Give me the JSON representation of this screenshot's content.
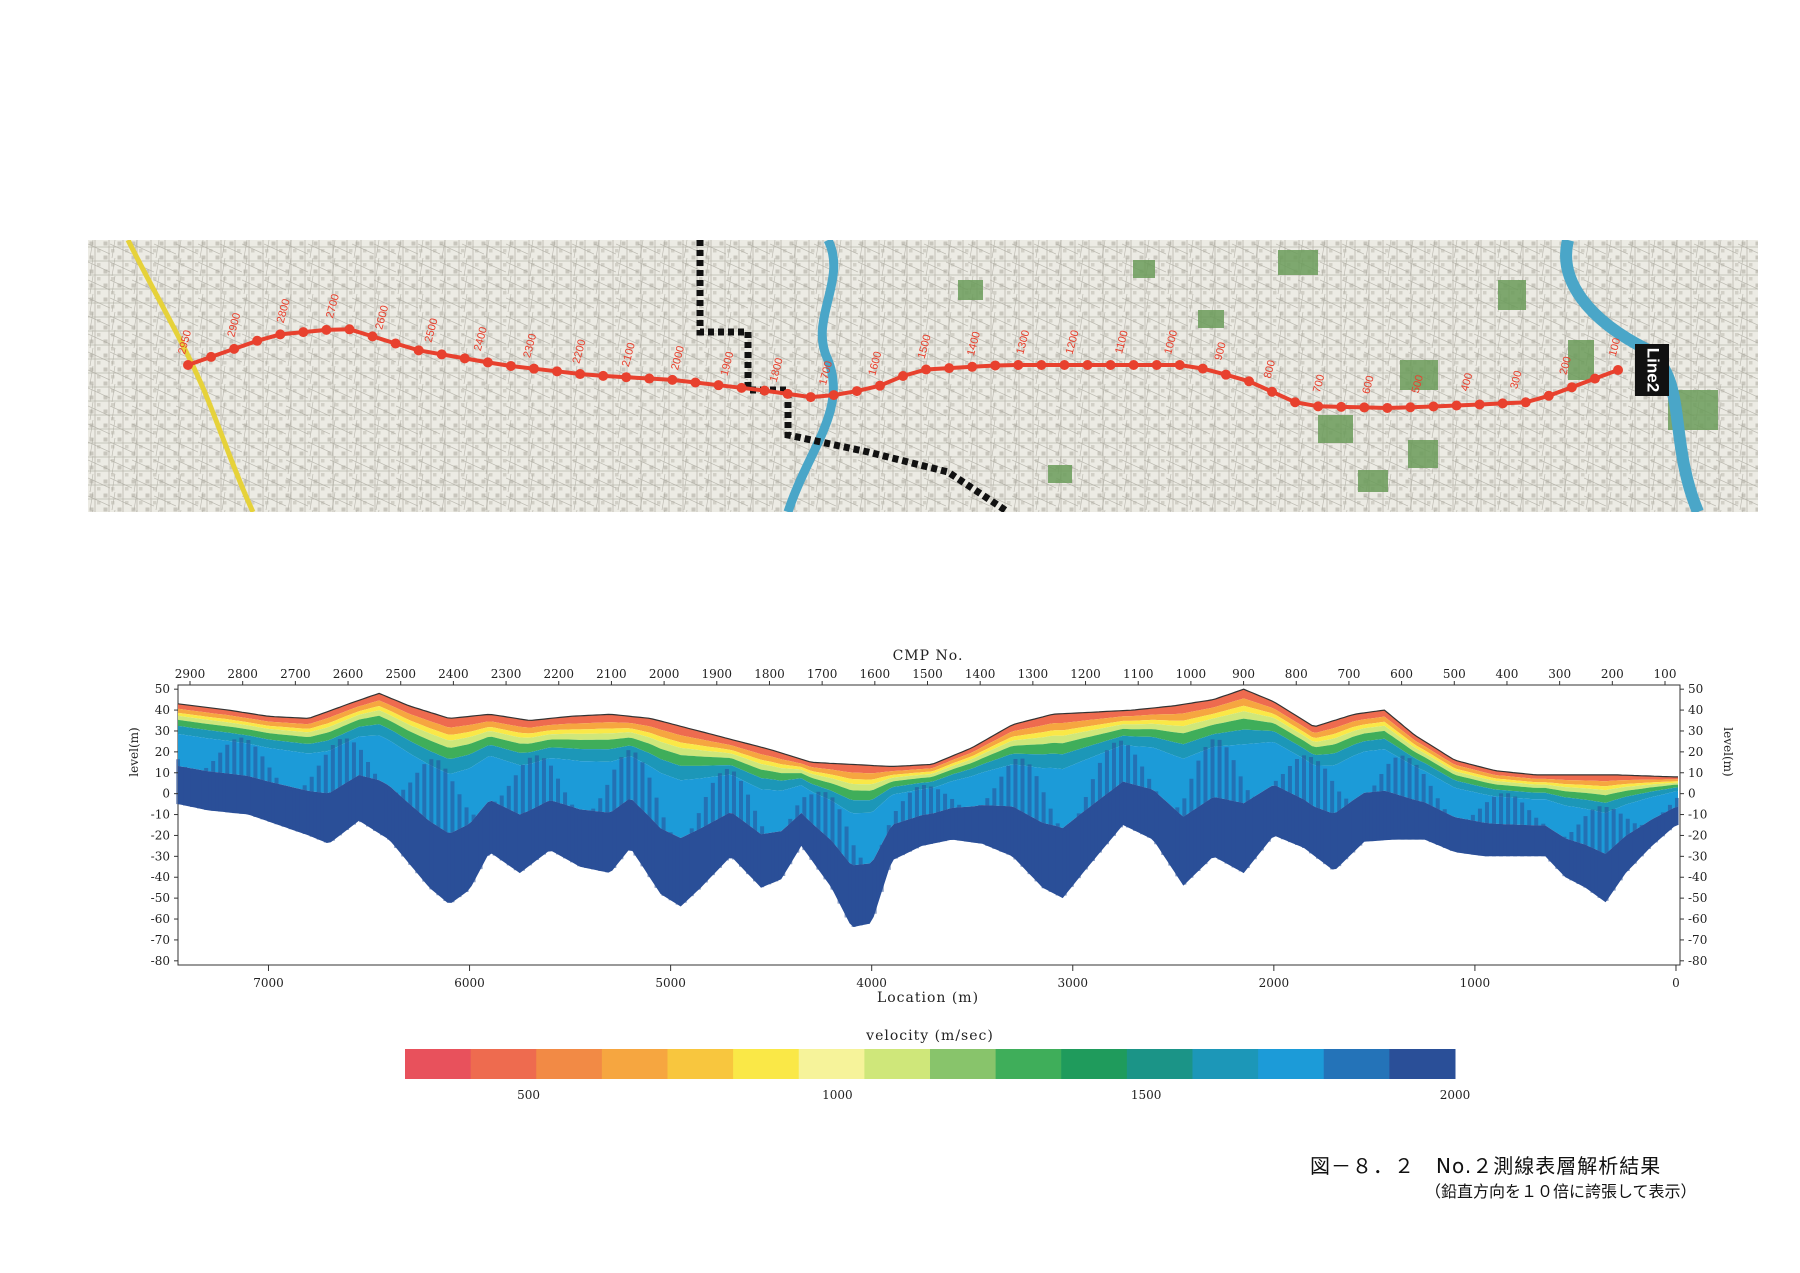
{
  "map": {
    "line_label": "Line2",
    "station_labels": [
      "2950",
      "2900",
      "2800",
      "2700",
      "2600",
      "2500",
      "2400",
      "2300",
      "2200",
      "2100",
      "2000",
      "1900",
      "1800",
      "1700",
      "1600",
      "1500",
      "1400",
      "1300",
      "1200",
      "1100",
      "1000",
      "900",
      "800",
      "700",
      "600",
      "500",
      "400",
      "300",
      "200",
      "100"
    ],
    "colors": {
      "route": "#e8412e",
      "land": "#e9e7df",
      "park": "#6b9c5a",
      "river": "#4aa6c8",
      "highway": "#e6d23a",
      "boundary": "#111111"
    }
  },
  "chart_data": {
    "type": "heatmap",
    "title": "CMP No.",
    "top_axis_ticks": [
      "2900",
      "2800",
      "2700",
      "2600",
      "2500",
      "2400",
      "2300",
      "2200",
      "2100",
      "2000",
      "1900",
      "1800",
      "1700",
      "1600",
      "1500",
      "1400",
      "1300",
      "1200",
      "1100",
      "1000",
      "900",
      "800",
      "700",
      "600",
      "500",
      "400",
      "300",
      "200",
      "100"
    ],
    "xlabel": "Location (m)",
    "x_ticks": [
      7000,
      6000,
      5000,
      4000,
      3000,
      2000,
      1000,
      0
    ],
    "xlim": [
      7450,
      -20
    ],
    "ylabel": "level(m)",
    "ylabel_right": "level(m)",
    "y_ticks": [
      50,
      40,
      30,
      20,
      10,
      0,
      -10,
      -20,
      -30,
      -40,
      -50,
      -60,
      -70,
      -80
    ],
    "ylim": [
      -82,
      52
    ],
    "surface": [
      [
        7450,
        43
      ],
      [
        7200,
        40
      ],
      [
        7000,
        37
      ],
      [
        6800,
        36
      ],
      [
        6600,
        43
      ],
      [
        6450,
        48
      ],
      [
        6300,
        42
      ],
      [
        6100,
        36
      ],
      [
        5900,
        38
      ],
      [
        5700,
        35
      ],
      [
        5500,
        37
      ],
      [
        5300,
        38
      ],
      [
        5100,
        36
      ],
      [
        4900,
        31
      ],
      [
        4700,
        26
      ],
      [
        4500,
        21
      ],
      [
        4300,
        15
      ],
      [
        4100,
        14
      ],
      [
        3900,
        13
      ],
      [
        3700,
        14
      ],
      [
        3500,
        22
      ],
      [
        3300,
        33
      ],
      [
        3100,
        38
      ],
      [
        2900,
        39
      ],
      [
        2700,
        40
      ],
      [
        2500,
        42
      ],
      [
        2300,
        45
      ],
      [
        2150,
        50
      ],
      [
        2000,
        44
      ],
      [
        1800,
        32
      ],
      [
        1600,
        38
      ],
      [
        1450,
        40
      ],
      [
        1300,
        28
      ],
      [
        1100,
        16
      ],
      [
        900,
        11
      ],
      [
        700,
        9
      ],
      [
        500,
        9
      ],
      [
        300,
        9
      ],
      [
        0,
        8
      ]
    ],
    "bottom": [
      [
        7450,
        -5
      ],
      [
        7300,
        -8
      ],
      [
        7100,
        -10
      ],
      [
        6950,
        -15
      ],
      [
        6800,
        -20
      ],
      [
        6700,
        -24
      ],
      [
        6550,
        -13
      ],
      [
        6400,
        -22
      ],
      [
        6200,
        -45
      ],
      [
        6100,
        -53
      ],
      [
        6000,
        -46
      ],
      [
        5900,
        -28
      ],
      [
        5750,
        -38
      ],
      [
        5600,
        -27
      ],
      [
        5450,
        -35
      ],
      [
        5300,
        -38
      ],
      [
        5200,
        -26
      ],
      [
        5050,
        -48
      ],
      [
        4950,
        -54
      ],
      [
        4850,
        -45
      ],
      [
        4700,
        -30
      ],
      [
        4550,
        -45
      ],
      [
        4450,
        -41
      ],
      [
        4350,
        -25
      ],
      [
        4200,
        -45
      ],
      [
        4100,
        -64
      ],
      [
        4000,
        -62
      ],
      [
        3900,
        -32
      ],
      [
        3750,
        -25
      ],
      [
        3600,
        -22
      ],
      [
        3450,
        -24
      ],
      [
        3300,
        -30
      ],
      [
        3150,
        -45
      ],
      [
        3050,
        -50
      ],
      [
        2950,
        -38
      ],
      [
        2750,
        -15
      ],
      [
        2600,
        -22
      ],
      [
        2450,
        -44
      ],
      [
        2300,
        -30
      ],
      [
        2150,
        -38
      ],
      [
        2000,
        -20
      ],
      [
        1850,
        -26
      ],
      [
        1700,
        -37
      ],
      [
        1550,
        -23
      ],
      [
        1400,
        -22
      ],
      [
        1250,
        -22
      ],
      [
        1100,
        -28
      ],
      [
        950,
        -30
      ],
      [
        800,
        -30
      ],
      [
        650,
        -30
      ],
      [
        550,
        -40
      ],
      [
        450,
        -45
      ],
      [
        350,
        -52
      ],
      [
        250,
        -38
      ],
      [
        120,
        -25
      ],
      [
        0,
        -15
      ]
    ],
    "legend": {
      "title": "velocity (m/sec)",
      "ticks": [
        500,
        1000,
        1500,
        2000
      ],
      "range": [
        300,
        2000
      ],
      "colors": [
        "#e8515c",
        "#ee6b4f",
        "#f28a45",
        "#f6a640",
        "#f8c63e",
        "#fae847",
        "#f6f39a",
        "#cfe77a",
        "#88c46b",
        "#3fae5a",
        "#1f9b5c",
        "#1b9487",
        "#1c97b8",
        "#1c9bd8",
        "#2473b8",
        "#2a4f98"
      ]
    }
  },
  "captions": {
    "line1": "図－８．２　No.２測線表層解析結果",
    "line2": "（鉛直方向を１０倍に誇張して表示）"
  }
}
